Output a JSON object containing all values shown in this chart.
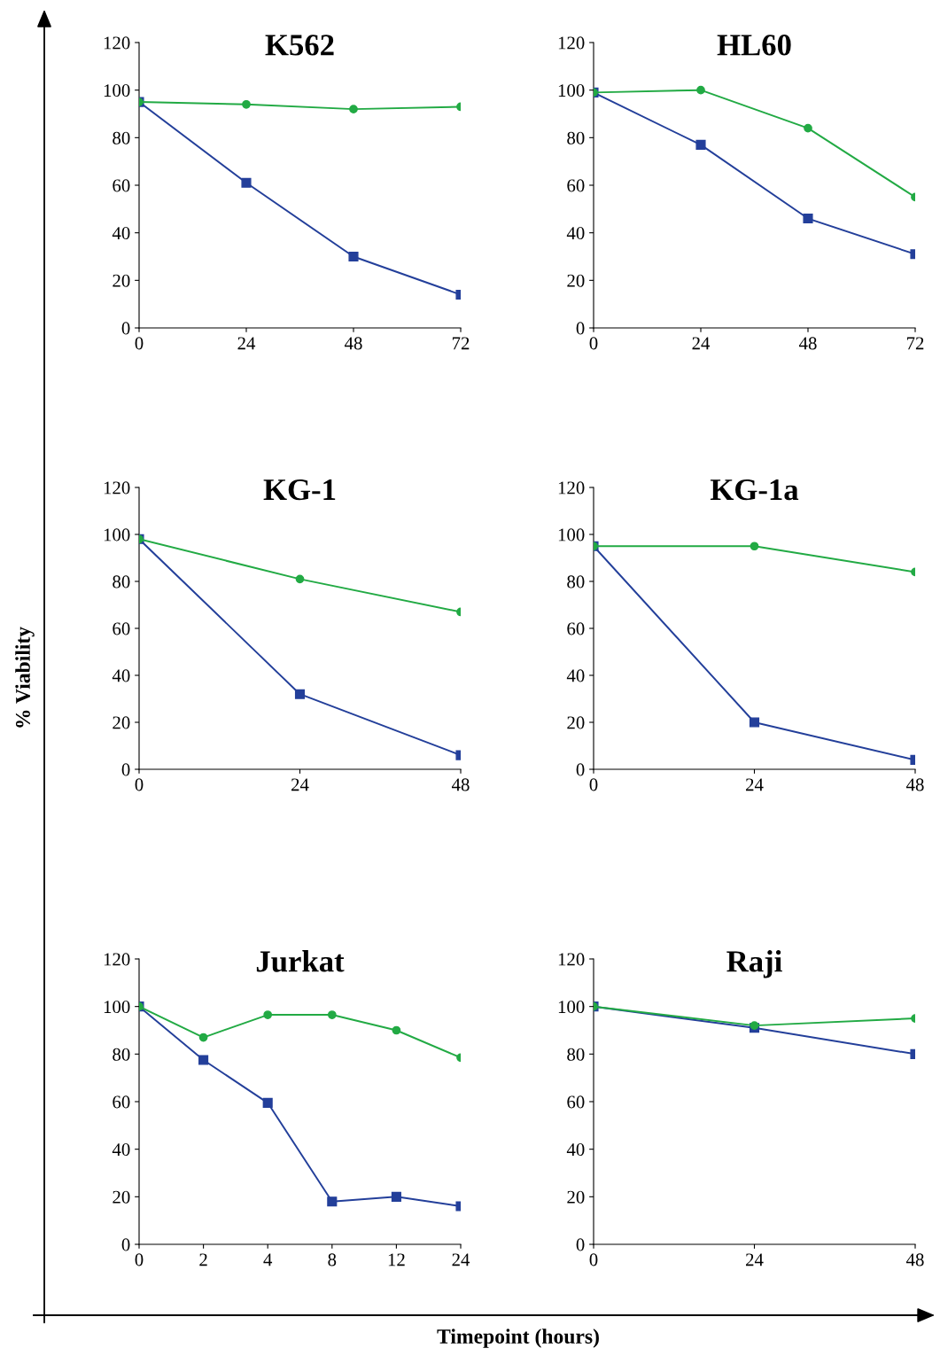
{
  "chart_data": [
    {
      "type": "line",
      "title": "K562",
      "categories": [
        "0",
        "24",
        "48",
        "72"
      ],
      "ylim": [
        0,
        120
      ],
      "yticks": [
        0,
        20,
        40,
        60,
        80,
        100,
        120
      ],
      "series": [
        {
          "color": "#22aa44",
          "marker": "circle",
          "values": [
            95,
            94,
            92,
            93
          ]
        },
        {
          "color": "#233f9a",
          "marker": "square",
          "values": [
            95,
            61,
            30,
            14
          ]
        }
      ]
    },
    {
      "type": "line",
      "title": "HL60",
      "categories": [
        "0",
        "24",
        "48",
        "72"
      ],
      "ylim": [
        0,
        120
      ],
      "yticks": [
        0,
        20,
        40,
        60,
        80,
        100,
        120
      ],
      "series": [
        {
          "color": "#22aa44",
          "marker": "circle",
          "values": [
            99,
            100,
            84,
            55
          ]
        },
        {
          "color": "#233f9a",
          "marker": "square",
          "values": [
            99,
            77,
            46,
            31
          ]
        }
      ]
    },
    {
      "type": "line",
      "title": "KG-1",
      "ylabel": "% Viability",
      "categories": [
        "0",
        "24",
        "48"
      ],
      "ylim": [
        0,
        120
      ],
      "yticks": [
        0,
        20,
        40,
        60,
        80,
        100,
        120
      ],
      "series": [
        {
          "color": "#22aa44",
          "marker": "circle",
          "values": [
            98,
            81,
            67
          ]
        },
        {
          "color": "#233f9a",
          "marker": "square",
          "values": [
            98,
            32,
            6
          ]
        }
      ]
    },
    {
      "type": "line",
      "title": "KG-1a",
      "categories": [
        "0",
        "24",
        "48"
      ],
      "ylim": [
        0,
        120
      ],
      "yticks": [
        0,
        20,
        40,
        60,
        80,
        100,
        120
      ],
      "series": [
        {
          "color": "#22aa44",
          "marker": "circle",
          "values": [
            95,
            95,
            84
          ]
        },
        {
          "color": "#233f9a",
          "marker": "square",
          "values": [
            95,
            20,
            4
          ]
        }
      ]
    },
    {
      "type": "line",
      "title": "Jurkat",
      "xlabel": "Timepoint (hours)",
      "categories": [
        "0",
        "2",
        "4",
        "8",
        "12",
        "24"
      ],
      "ylim": [
        0,
        120
      ],
      "yticks": [
        0,
        20,
        40,
        60,
        80,
        100,
        120
      ],
      "series": [
        {
          "color": "#22aa44",
          "marker": "circle",
          "values": [
            100,
            87,
            96.5,
            96.5,
            90,
            78.5
          ]
        },
        {
          "color": "#233f9a",
          "marker": "square",
          "values": [
            100,
            77.5,
            59.5,
            18,
            20,
            16
          ]
        }
      ]
    },
    {
      "type": "line",
      "title": "Raji",
      "categories": [
        "0",
        "24",
        "48"
      ],
      "ylim": [
        0,
        120
      ],
      "yticks": [
        0,
        20,
        40,
        60,
        80,
        100,
        120
      ],
      "series": [
        {
          "color": "#22aa44",
          "marker": "circle",
          "values": [
            100,
            92,
            95
          ]
        },
        {
          "color": "#233f9a",
          "marker": "square",
          "values": [
            100,
            91,
            80
          ]
        }
      ]
    }
  ]
}
